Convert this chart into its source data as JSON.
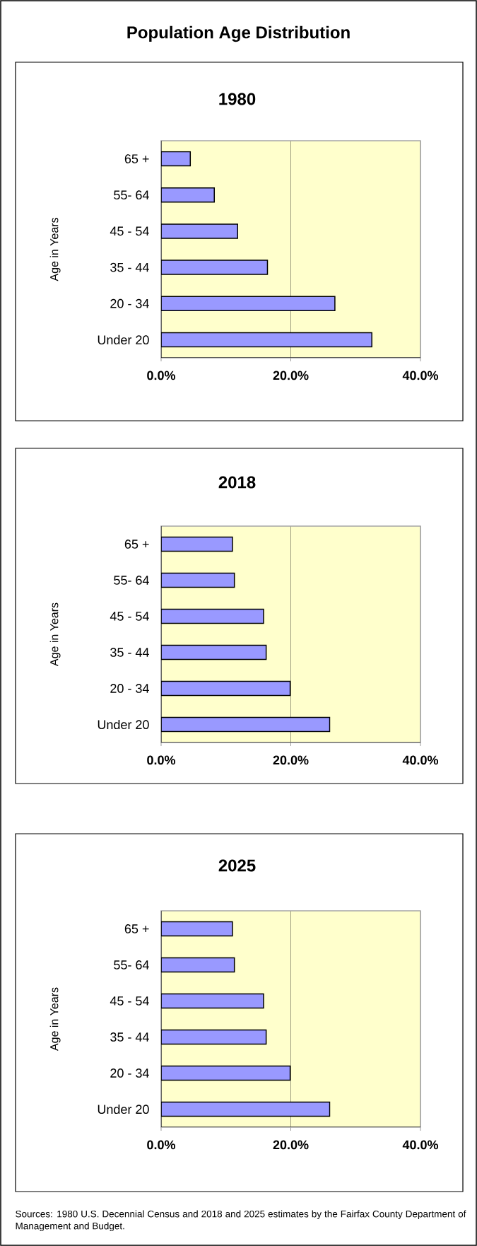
{
  "chart_data": [
    {
      "type": "other",
      "title": "Population Age Distribution"
    },
    {
      "type": "bar",
      "orientation": "horizontal",
      "title": "1980",
      "ylabel": "Age in Years",
      "categories": [
        "65 +",
        "55- 64",
        "45 - 54",
        "35 - 44",
        "20 - 34",
        "Under 20"
      ],
      "values": [
        4.5,
        8.2,
        11.8,
        16.4,
        26.8,
        32.5
      ],
      "color": "#9999ff",
      "xlim": [
        0,
        40
      ],
      "xticks": [
        {
          "value": 0,
          "label": "0.0%"
        },
        {
          "value": 20,
          "label": "20.0%"
        },
        {
          "value": 40,
          "label": "40.0%"
        }
      ],
      "grid": "x"
    },
    {
      "type": "bar",
      "orientation": "horizontal",
      "title": "2018",
      "ylabel": "Age in Years",
      "categories": [
        "65 +",
        "55- 64",
        "45 - 54",
        "35 - 44",
        "20 - 34",
        "Under 20"
      ],
      "values": [
        11.0,
        11.3,
        15.8,
        16.2,
        19.9,
        26.0
      ],
      "color": "#9999ff",
      "xlim": [
        0,
        40
      ],
      "xticks": [
        {
          "value": 0,
          "label": "0.0%"
        },
        {
          "value": 20,
          "label": "20.0%"
        },
        {
          "value": 40,
          "label": "40.0%"
        }
      ],
      "grid": "x"
    },
    {
      "type": "bar",
      "orientation": "horizontal",
      "title": "2025",
      "ylabel": "Age in Years",
      "categories": [
        "65 +",
        "55- 64",
        "45 - 54",
        "35 - 44",
        "20 - 34",
        "Under 20"
      ],
      "values": [
        11.0,
        11.3,
        15.8,
        16.2,
        19.9,
        26.0
      ],
      "color": "#9999ff",
      "xlim": [
        0,
        40
      ],
      "xticks": [
        {
          "value": 0,
          "label": "0.0%"
        },
        {
          "value": 20,
          "label": "20.0%"
        },
        {
          "value": 40,
          "label": "40.0%"
        }
      ],
      "grid": "x",
      "annotations": [
        "Sources: 1980 U.S. Decennial Census and 2018 and 2025 estimates by the Fairfax County Department of Management and Budget."
      ]
    }
  ]
}
